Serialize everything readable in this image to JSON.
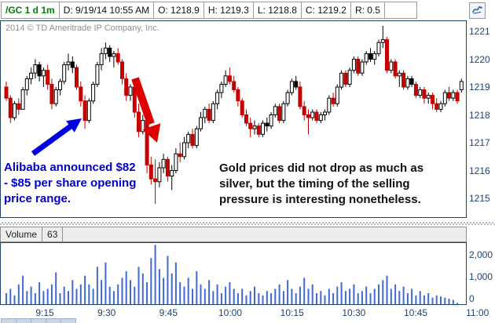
{
  "header": {
    "symbol_cell": "/GC 1 d 1m",
    "cells": [
      "D: 9/19/14 10:55 AM",
      "O: 1218.9",
      "H: 1219.3",
      "L: 1218.8",
      "C: 1219.2",
      "R: 0.5"
    ],
    "style_button_icon": "chart-squiggle-icon"
  },
  "copyright": "2014 © TD Ameritrade IP Company, Inc.",
  "annotations": {
    "blue_note": {
      "lines": [
        "Alibaba announced $82",
        "- $85 per share opening",
        "price range."
      ],
      "color": "#0000cc"
    },
    "black_note": {
      "lines": [
        "Gold prices did not drop as much as",
        "silver, but the timing of the selling",
        "pressure is interesting nonetheless."
      ],
      "color": "#111111"
    }
  },
  "volume_panel": {
    "title": "Volume",
    "current_value": "63"
  },
  "time_axis": {
    "labels": [
      "9:15",
      "9:30",
      "9:45",
      "10:00",
      "10:15",
      "10:30",
      "10:45",
      "11:00"
    ]
  },
  "colors": {
    "up_candle": "#ffffff",
    "down_candle": "#c40000",
    "candle_outline": "#000000",
    "volume_bar": "#4169d6",
    "panel_border": "#1f4468",
    "axis_text": "#1e4272",
    "symbol_green": "#008000",
    "blue_arrow": "#0000dd",
    "red_arrow": "#dd0000"
  },
  "chart_data": {
    "type": "candlestick+volume",
    "symbol": "/GC",
    "timeframe": "1 d 1m",
    "ohlc_header": {
      "date": "9/19/14 10:55 AM",
      "open": 1218.9,
      "high": 1219.3,
      "low": 1218.8,
      "close": 1219.2,
      "range": 0.5
    },
    "price_axis": {
      "min": 1214.5,
      "max": 1221.4,
      "ticks": [
        1221,
        1220,
        1219,
        1218,
        1217,
        1216,
        1215
      ]
    },
    "time_start": "9:06",
    "interval_minutes": 1,
    "time_ticks": [
      "9:15",
      "9:30",
      "9:45",
      "10:00",
      "10:15",
      "10:30",
      "10:45",
      "11:00"
    ],
    "volume_ticks": [
      {
        "label": "2,000",
        "v": 2000
      },
      {
        "label": "1,000",
        "v": 1000
      },
      {
        "label": "0",
        "v": 0
      }
    ],
    "candles": [
      [
        1219.0,
        1219.2,
        1218.5,
        1218.6
      ],
      [
        1218.6,
        1218.7,
        1217.7,
        1217.9
      ],
      [
        1217.9,
        1218.5,
        1217.8,
        1218.4
      ],
      [
        1218.4,
        1218.6,
        1218.0,
        1218.2
      ],
      [
        1218.2,
        1219.0,
        1218.2,
        1218.9
      ],
      [
        1218.9,
        1219.4,
        1218.7,
        1219.3
      ],
      [
        1219.3,
        1219.7,
        1219.1,
        1219.5
      ],
      [
        1219.5,
        1220.0,
        1219.3,
        1219.8
      ],
      [
        1219.8,
        1219.9,
        1219.2,
        1219.4,
        "k"
      ],
      [
        1219.4,
        1219.7,
        1219.0,
        1219.6
      ],
      [
        1219.6,
        1219.8,
        1218.9,
        1219.1
      ],
      [
        1219.1,
        1219.3,
        1218.2,
        1218.4
      ],
      [
        1218.4,
        1219.0,
        1218.3,
        1218.9
      ],
      [
        1218.9,
        1219.3,
        1218.7,
        1219.2
      ],
      [
        1219.2,
        1219.9,
        1219.1,
        1219.8
      ],
      [
        1219.8,
        1220.2,
        1219.6,
        1219.9
      ],
      [
        1219.9,
        1220.1,
        1219.5,
        1219.7,
        "k"
      ],
      [
        1219.7,
        1219.8,
        1218.9,
        1219.0
      ],
      [
        1219.0,
        1219.2,
        1218.3,
        1218.5
      ],
      [
        1218.5,
        1218.7,
        1217.5,
        1217.8
      ],
      [
        1217.8,
        1218.6,
        1217.7,
        1218.5
      ],
      [
        1218.5,
        1219.2,
        1218.4,
        1219.1
      ],
      [
        1219.1,
        1219.9,
        1219.0,
        1219.8
      ],
      [
        1219.8,
        1220.4,
        1219.6,
        1220.2
      ],
      [
        1220.2,
        1220.6,
        1220.0,
        1220.4
      ],
      [
        1220.4,
        1220.5,
        1219.9,
        1220.1,
        "k"
      ],
      [
        1220.1,
        1220.3,
        1219.7,
        1220.2
      ],
      [
        1220.2,
        1220.4,
        1219.8,
        1219.9
      ],
      [
        1219.9,
        1220.0,
        1219.1,
        1219.3
      ],
      [
        1219.3,
        1219.5,
        1218.5,
        1218.7
      ],
      [
        1218.7,
        1219.1,
        1218.5,
        1219.0
      ],
      [
        1219.0,
        1219.1,
        1217.9,
        1218.1
      ],
      [
        1218.1,
        1218.4,
        1217.2,
        1217.4
      ],
      [
        1217.4,
        1218.0,
        1217.3,
        1217.8
      ],
      [
        1217.8,
        1217.9,
        1215.9,
        1216.2
      ],
      [
        1216.2,
        1216.5,
        1215.5,
        1215.7
      ],
      [
        1215.7,
        1216.4,
        1214.8,
        1215.6
      ],
      [
        1215.6,
        1216.3,
        1215.4,
        1216.1
      ],
      [
        1216.1,
        1216.6,
        1215.9,
        1216.4
      ],
      [
        1216.4,
        1216.5,
        1215.6,
        1215.8
      ],
      [
        1215.8,
        1216.2,
        1215.3,
        1216.0
      ],
      [
        1216.0,
        1216.8,
        1215.9,
        1216.6
      ],
      [
        1216.6,
        1217.0,
        1216.3,
        1216.5
      ],
      [
        1216.5,
        1217.2,
        1216.4,
        1217.0
      ],
      [
        1217.0,
        1217.4,
        1216.8,
        1217.3
      ],
      [
        1217.3,
        1217.5,
        1216.8,
        1216.9
      ],
      [
        1216.9,
        1217.6,
        1216.8,
        1217.5
      ],
      [
        1217.5,
        1218.1,
        1217.4,
        1217.9
      ],
      [
        1217.9,
        1218.3,
        1217.7,
        1218.2
      ],
      [
        1218.2,
        1218.4,
        1217.7,
        1217.8
      ],
      [
        1217.8,
        1218.5,
        1217.7,
        1218.4
      ],
      [
        1218.4,
        1218.9,
        1218.2,
        1218.8
      ],
      [
        1218.8,
        1219.2,
        1218.6,
        1219.1
      ],
      [
        1219.1,
        1219.6,
        1219.0,
        1219.4
      ],
      [
        1219.4,
        1219.7,
        1219.1,
        1219.2
      ],
      [
        1219.2,
        1219.4,
        1218.8,
        1218.9
      ],
      [
        1218.9,
        1219.0,
        1218.3,
        1218.5
      ],
      [
        1218.5,
        1218.6,
        1217.9,
        1218.0
      ],
      [
        1218.0,
        1218.2,
        1217.6,
        1217.7
      ],
      [
        1217.7,
        1217.9,
        1217.2,
        1217.5
      ],
      [
        1217.5,
        1217.8,
        1217.3,
        1217.6
      ],
      [
        1217.6,
        1217.7,
        1217.2,
        1217.3
      ],
      [
        1217.3,
        1217.8,
        1217.2,
        1217.7
      ],
      [
        1217.7,
        1217.9,
        1217.4,
        1217.6,
        "k"
      ],
      [
        1217.6,
        1218.1,
        1217.5,
        1218.0
      ],
      [
        1218.0,
        1218.4,
        1217.9,
        1218.3
      ],
      [
        1218.3,
        1218.4,
        1217.7,
        1217.8
      ],
      [
        1217.8,
        1218.5,
        1217.7,
        1218.4
      ],
      [
        1218.4,
        1218.9,
        1218.3,
        1218.8
      ],
      [
        1218.8,
        1219.3,
        1218.7,
        1219.2
      ],
      [
        1219.2,
        1219.4,
        1218.9,
        1219.0,
        "k"
      ],
      [
        1219.0,
        1219.2,
        1218.2,
        1218.3
      ],
      [
        1218.3,
        1218.5,
        1217.8,
        1218.0
      ],
      [
        1218.0,
        1218.2,
        1217.3,
        1217.9
      ],
      [
        1217.9,
        1218.2,
        1217.8,
        1218.1
      ],
      [
        1218.1,
        1218.2,
        1217.7,
        1217.8
      ],
      [
        1217.8,
        1218.1,
        1217.7,
        1218.0
      ],
      [
        1218.0,
        1218.2,
        1217.8,
        1218.1
      ],
      [
        1218.1,
        1218.7,
        1218.0,
        1218.6
      ],
      [
        1218.6,
        1218.8,
        1218.3,
        1218.4
      ],
      [
        1218.4,
        1219.1,
        1218.3,
        1219.0
      ],
      [
        1219.0,
        1219.6,
        1218.9,
        1219.5
      ],
      [
        1219.5,
        1219.6,
        1219.0,
        1219.1
      ],
      [
        1219.1,
        1219.7,
        1219.0,
        1219.6
      ],
      [
        1219.6,
        1220.1,
        1219.5,
        1220.0
      ],
      [
        1220.0,
        1220.1,
        1219.4,
        1219.5
      ],
      [
        1219.5,
        1220.0,
        1219.4,
        1219.9
      ],
      [
        1219.9,
        1220.3,
        1219.8,
        1220.2
      ],
      [
        1220.2,
        1220.4,
        1219.9,
        1220.0,
        "k"
      ],
      [
        1220.0,
        1220.3,
        1219.8,
        1220.2
      ],
      [
        1220.2,
        1220.7,
        1220.1,
        1220.6
      ],
      [
        1220.6,
        1221.2,
        1220.4,
        1220.7
      ],
      [
        1220.7,
        1220.8,
        1219.5,
        1219.6
      ],
      [
        1219.6,
        1220.0,
        1219.5,
        1219.9
      ],
      [
        1219.9,
        1220.0,
        1219.3,
        1219.4
      ],
      [
        1219.4,
        1219.6,
        1219.0,
        1219.5
      ],
      [
        1219.5,
        1219.6,
        1218.9,
        1219.0
      ],
      [
        1219.0,
        1219.4,
        1218.9,
        1219.3
      ],
      [
        1219.3,
        1219.4,
        1219.0,
        1219.1,
        "k"
      ],
      [
        1219.1,
        1219.2,
        1218.6,
        1218.7
      ],
      [
        1218.7,
        1219.0,
        1218.6,
        1218.9
      ],
      [
        1218.9,
        1219.0,
        1218.4,
        1218.6
      ],
      [
        1218.6,
        1218.8,
        1218.4,
        1218.7
      ],
      [
        1218.7,
        1218.8,
        1218.2,
        1218.4
      ],
      [
        1218.4,
        1218.6,
        1218.1,
        1218.2
      ],
      [
        1218.2,
        1218.5,
        1218.1,
        1218.4
      ],
      [
        1218.4,
        1218.9,
        1218.3,
        1218.8
      ],
      [
        1218.8,
        1219.0,
        1218.5,
        1218.6
      ],
      [
        1218.6,
        1218.9,
        1218.5,
        1218.8
      ],
      [
        1218.8,
        1218.9,
        1218.4,
        1218.5
      ],
      [
        1218.9,
        1219.3,
        1218.8,
        1219.2
      ]
    ],
    "volume": [
      500,
      700,
      400,
      900,
      1300,
      600,
      800,
      500,
      1000,
      600,
      700,
      900,
      1450,
      500,
      800,
      600,
      1100,
      700,
      900,
      1300,
      900,
      700,
      1700,
      1100,
      1900,
      800,
      600,
      900,
      1200,
      1500,
      1100,
      800,
      1700,
      1400,
      1000,
      2100,
      2700,
      1600,
      1200,
      2200,
      1400,
      1900,
      1000,
      800,
      1200,
      700,
      1500,
      900,
      700,
      1100,
      600,
      900,
      500,
      800,
      1000,
      700,
      500,
      700,
      400,
      600,
      800,
      500,
      400,
      600,
      500,
      700,
      900,
      600,
      1100,
      700,
      500,
      800,
      1200,
      700,
      900,
      500,
      600,
      400,
      700,
      500,
      800,
      1000,
      600,
      700,
      900,
      500,
      600,
      800,
      500,
      700,
      900,
      1100,
      1300,
      700,
      900,
      600,
      800,
      500,
      700,
      400,
      600,
      400,
      500,
      300,
      400,
      350,
      300,
      250,
      200,
      63
    ]
  }
}
